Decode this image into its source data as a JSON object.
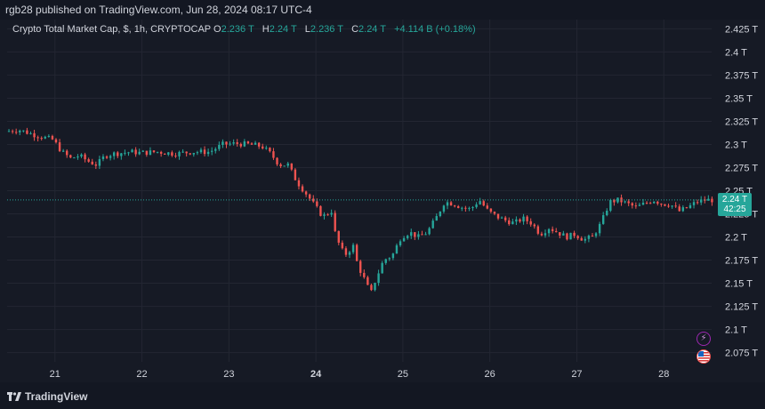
{
  "header": {
    "publisher_line": "rgb28 published on TradingView.com, Jun 28, 2024 08:17 UTC-4"
  },
  "legend": {
    "symbol": "Crypto Total Market Cap, $, 1h, CRYPTOCAP",
    "open_label": "O",
    "open": "2.236 T",
    "high_label": "H",
    "high": "2.24 T",
    "low_label": "L",
    "low": "2.236 T",
    "close_label": "C",
    "close": "2.24 T",
    "change": "+4.114 B (+0.18%)"
  },
  "price_badge": {
    "price": "2.24 T",
    "countdown": "42:25"
  },
  "footer": {
    "brand": "TradingView"
  },
  "colors": {
    "up": "#26a69a",
    "down": "#ef5350",
    "background": "#161a25",
    "grid": "#232632",
    "text": "#d1d4dc"
  },
  "icons": [
    "lightning-icon",
    "us-flag-icon",
    "tradingview-logo-icon"
  ],
  "chart_data": {
    "type": "candlestick",
    "title": "Crypto Total Market Cap, $, 1h, CRYPTOCAP",
    "y_unit": "T",
    "ylim": [
      2.065,
      2.435
    ],
    "y_ticks": [
      "2.425 T",
      "2.4 T",
      "2.375 T",
      "2.35 T",
      "2.325 T",
      "2.3 T",
      "2.275 T",
      "2.25 T",
      "2.225 T",
      "2.2 T",
      "2.175 T",
      "2.15 T",
      "2.125 T",
      "2.1 T",
      "2.075 T"
    ],
    "x_ticks": [
      "21",
      "22",
      "23",
      "24",
      "25",
      "26",
      "27",
      "28"
    ],
    "x_tick_days": [
      21,
      22,
      23,
      24,
      25,
      26,
      27,
      28
    ],
    "x_range_days": [
      20.45,
      28.55
    ],
    "bold_x_tick": "24",
    "grid": true,
    "last_price": 2.24,
    "close_path": [
      [
        20.45,
        2.314
      ],
      [
        20.6,
        2.316
      ],
      [
        20.8,
        2.31
      ],
      [
        21.0,
        2.305
      ],
      [
        21.1,
        2.292
      ],
      [
        21.2,
        2.285
      ],
      [
        21.3,
        2.288
      ],
      [
        21.4,
        2.282
      ],
      [
        21.5,
        2.278
      ],
      [
        21.6,
        2.288
      ],
      [
        21.7,
        2.29
      ],
      [
        21.8,
        2.291
      ],
      [
        21.9,
        2.292
      ],
      [
        22.0,
        2.291
      ],
      [
        22.2,
        2.292
      ],
      [
        22.4,
        2.29
      ],
      [
        22.6,
        2.292
      ],
      [
        22.8,
        2.292
      ],
      [
        22.95,
        2.3
      ],
      [
        23.1,
        2.301
      ],
      [
        23.25,
        2.3
      ],
      [
        23.4,
        2.298
      ],
      [
        23.5,
        2.29
      ],
      [
        23.6,
        2.278
      ],
      [
        23.7,
        2.278
      ],
      [
        23.8,
        2.26
      ],
      [
        23.9,
        2.248
      ],
      [
        24.0,
        2.235
      ],
      [
        24.1,
        2.222
      ],
      [
        24.2,
        2.228
      ],
      [
        24.25,
        2.2
      ],
      [
        24.35,
        2.18
      ],
      [
        24.45,
        2.19
      ],
      [
        24.5,
        2.17
      ],
      [
        24.6,
        2.15
      ],
      [
        24.65,
        2.138
      ],
      [
        24.7,
        2.152
      ],
      [
        24.8,
        2.175
      ],
      [
        24.9,
        2.18
      ],
      [
        25.0,
        2.2
      ],
      [
        25.1,
        2.205
      ],
      [
        25.2,
        2.2
      ],
      [
        25.3,
        2.205
      ],
      [
        25.4,
        2.22
      ],
      [
        25.5,
        2.238
      ],
      [
        25.6,
        2.236
      ],
      [
        25.7,
        2.232
      ],
      [
        25.8,
        2.23
      ],
      [
        25.9,
        2.24
      ],
      [
        26.0,
        2.228
      ],
      [
        26.1,
        2.222
      ],
      [
        26.2,
        2.218
      ],
      [
        26.3,
        2.215
      ],
      [
        26.4,
        2.22
      ],
      [
        26.5,
        2.215
      ],
      [
        26.6,
        2.203
      ],
      [
        26.7,
        2.21
      ],
      [
        26.8,
        2.205
      ],
      [
        26.9,
        2.2
      ],
      [
        27.0,
        2.203
      ],
      [
        27.1,
        2.197
      ],
      [
        27.2,
        2.2
      ],
      [
        27.3,
        2.215
      ],
      [
        27.4,
        2.238
      ],
      [
        27.5,
        2.24
      ],
      [
        27.6,
        2.236
      ],
      [
        27.7,
        2.232
      ],
      [
        27.8,
        2.236
      ],
      [
        27.9,
        2.24
      ],
      [
        28.0,
        2.236
      ],
      [
        28.1,
        2.235
      ],
      [
        28.2,
        2.228
      ],
      [
        28.3,
        2.232
      ],
      [
        28.4,
        2.238
      ],
      [
        28.5,
        2.24
      ]
    ]
  }
}
